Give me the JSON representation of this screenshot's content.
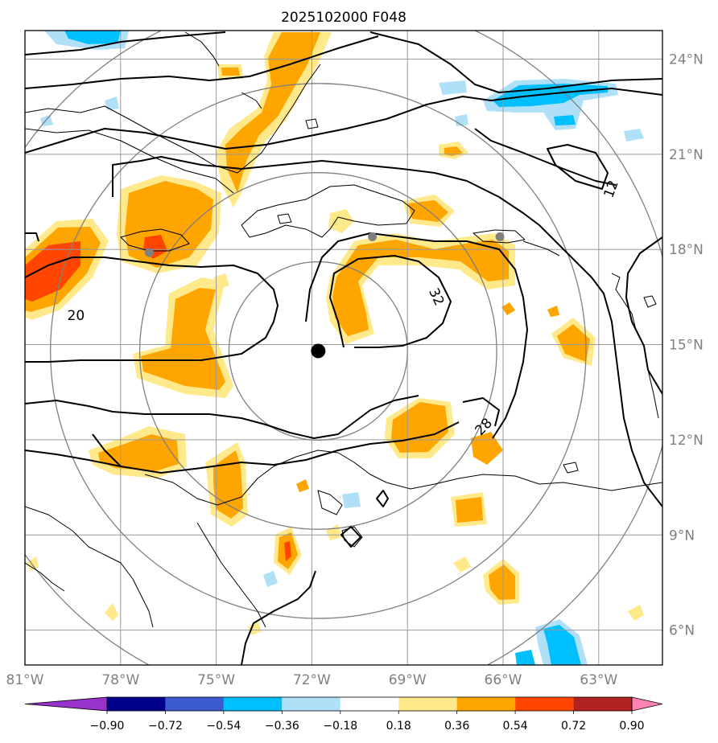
{
  "title": "2025102000 F048",
  "map": {
    "lon_range": [
      -81,
      -61
    ],
    "lat_range": [
      4.9,
      24.9
    ],
    "lon_ticks": [
      -81,
      -78,
      -75,
      -72,
      -69,
      -66,
      -63
    ],
    "lon_tick_labels": [
      "81°W",
      "78°W",
      "75°W",
      "72°W",
      "69°W",
      "66°W",
      "63°W"
    ],
    "lat_ticks": [
      6,
      9,
      12,
      15,
      18,
      21,
      24
    ],
    "lat_tick_labels": [
      "6°N",
      "9°N",
      "12°N",
      "15°N",
      "18°N",
      "21°N",
      "24°N"
    ],
    "storm_center": {
      "lon": -71.8,
      "lat": 14.8
    },
    "range_rings_deg": [
      2.8,
      5.6,
      8.4,
      11.2
    ],
    "markers": [
      {
        "name": "marker-1",
        "lon": -77.1,
        "lat": 17.9,
        "color": "#808080"
      },
      {
        "name": "marker-2",
        "lon": -70.1,
        "lat": 18.4,
        "color": "#808080"
      },
      {
        "name": "marker-3",
        "lon": -66.1,
        "lat": 18.4,
        "color": "#808080"
      }
    ],
    "contour_labels": [
      {
        "text": "12",
        "lon": -62.6,
        "lat": 19.9,
        "rot": -70
      },
      {
        "text": "32",
        "lon": -68.1,
        "lat": 16.5,
        "rot": 65
      },
      {
        "text": "28",
        "lon": -66.6,
        "lat": 12.4,
        "rot": -45
      },
      {
        "text": "20",
        "lon": -79.4,
        "lat": 15.9,
        "rot": 0
      }
    ]
  },
  "colorbar": {
    "levels": [
      -0.9,
      -0.72,
      -0.54,
      -0.36,
      -0.18,
      0.18,
      0.36,
      0.54,
      0.72,
      0.9
    ],
    "labels": [
      "−0.90",
      "−0.72",
      "−0.54",
      "−0.36",
      "−0.18",
      "0.18",
      "0.36",
      "0.54",
      "0.72",
      "0.90"
    ],
    "colors": [
      "#9932cc",
      "#00008b",
      "#3c5ad2",
      "#00bfff",
      "#b0e0f8",
      "#ffffff",
      "#ffe98a",
      "#ffa500",
      "#ff4500",
      "#b22222",
      "#ff82b4"
    ]
  },
  "colors": {
    "ring": "#808080",
    "grid": "#9a9a9a",
    "contour": "#000000",
    "coast": "#000000"
  }
}
